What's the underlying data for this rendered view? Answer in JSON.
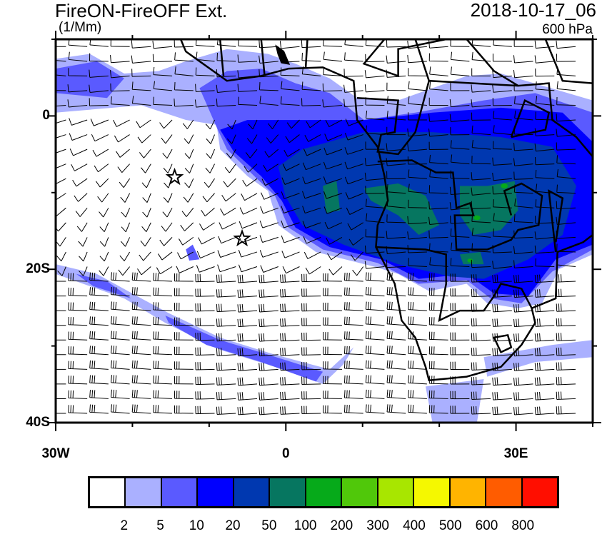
{
  "header": {
    "title": "FireON-FireOFF Ext.",
    "units": "(1/Mm)",
    "datetime": "2018-10-17_06",
    "level": "600 hPa"
  },
  "axes": {
    "x_ticks": [
      {
        "lon": -30,
        "label": "30W"
      },
      {
        "lon": 0,
        "label": "0"
      },
      {
        "lon": 30,
        "label": "30E"
      }
    ],
    "y_ticks": [
      {
        "lat": 0,
        "label": "0"
      },
      {
        "lat": -20,
        "label": "20S"
      },
      {
        "lat": -40,
        "label": "40S"
      }
    ],
    "lon_range": [
      -30,
      40
    ],
    "lat_range": [
      -40,
      10
    ]
  },
  "markers": [
    {
      "type": "star",
      "lon": -14.5,
      "lat": -8
    },
    {
      "type": "star",
      "lon": -5.7,
      "lat": -16
    }
  ],
  "colorbar": {
    "colors": [
      "#ffffff",
      "#aab0ff",
      "#5a5aff",
      "#0000ff",
      "#0038b0",
      "#067660",
      "#06aa1a",
      "#50c80a",
      "#a8e600",
      "#f5f800",
      "#ffb400",
      "#ff5c00",
      "#ff0e00"
    ],
    "labels": [
      "2",
      "5",
      "10",
      "20",
      "50",
      "100",
      "200",
      "300",
      "400",
      "500",
      "600",
      "800"
    ]
  }
}
